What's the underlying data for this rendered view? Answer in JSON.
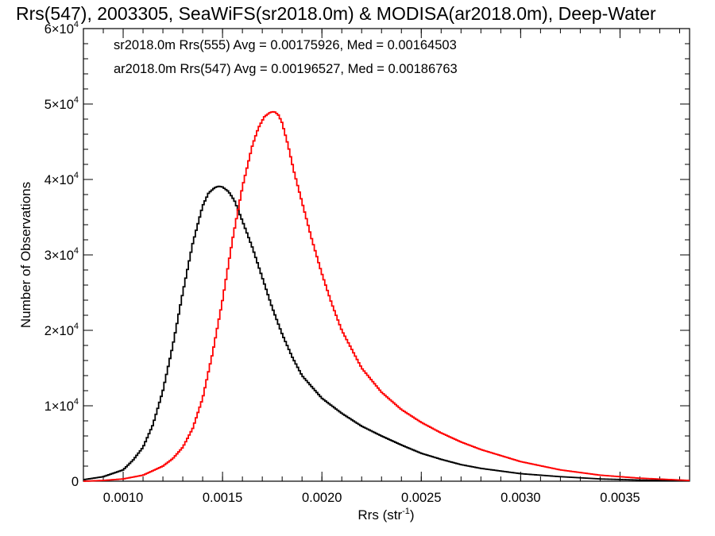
{
  "chart_data": {
    "type": "line",
    "title": "Rrs(547), 2003305, SeaWiFS(sr2018.0m) & MODISA(ar2018.0m), Deep-Water",
    "xlabel_main": "Rrs (str",
    "xlabel_sup": "-1",
    "xlabel_close": ")",
    "ylabel": "Number of Observations",
    "xlim": [
      0.0008,
      0.00385
    ],
    "ylim": [
      0,
      60000
    ],
    "x_ticks": [
      {
        "value": 0.001,
        "label": "0.0010"
      },
      {
        "value": 0.0015,
        "label": "0.0015"
      },
      {
        "value": 0.002,
        "label": "0.0020"
      },
      {
        "value": 0.0025,
        "label": "0.0025"
      },
      {
        "value": 0.003,
        "label": "0.0030"
      },
      {
        "value": 0.0035,
        "label": "0.0035"
      }
    ],
    "y_ticks": [
      {
        "value": 0,
        "label": "0",
        "mant": "",
        "exp": ""
      },
      {
        "value": 10000,
        "label": "",
        "mant": "1×10",
        "exp": "4"
      },
      {
        "value": 20000,
        "label": "",
        "mant": "2×10",
        "exp": "4"
      },
      {
        "value": 30000,
        "label": "",
        "mant": "3×10",
        "exp": "4"
      },
      {
        "value": 40000,
        "label": "",
        "mant": "4×10",
        "exp": "4"
      },
      {
        "value": 50000,
        "label": "",
        "mant": "5×10",
        "exp": "4"
      },
      {
        "value": 60000,
        "label": "",
        "mant": "6×10",
        "exp": "4"
      }
    ],
    "grid": false,
    "legend_position": "top-left",
    "series": [
      {
        "name": "sr2018.0m Rrs(555) Avg = 0.00175926, Med = 0.00164503",
        "color": "#000000",
        "x": [
          0.0008,
          0.0009,
          0.001,
          0.00105,
          0.0011,
          0.00115,
          0.0012,
          0.00125,
          0.0013,
          0.00135,
          0.0014,
          0.00143,
          0.00146,
          0.00148,
          0.0015,
          0.00153,
          0.00156,
          0.0016,
          0.00165,
          0.0017,
          0.00175,
          0.0018,
          0.00185,
          0.0019,
          0.002,
          0.0021,
          0.0022,
          0.0023,
          0.0024,
          0.0025,
          0.0026,
          0.0027,
          0.0028,
          0.003,
          0.0032,
          0.0034,
          0.0036,
          0.00385
        ],
        "y": [
          200,
          600,
          1500,
          2800,
          4500,
          7500,
          12000,
          18000,
          25000,
          31500,
          36500,
          38200,
          38900,
          39100,
          39000,
          38400,
          37200,
          34500,
          31000,
          27000,
          23000,
          19500,
          16500,
          14000,
          11000,
          9000,
          7300,
          6000,
          4800,
          3700,
          2900,
          2200,
          1700,
          1000,
          600,
          300,
          150,
          50
        ]
      },
      {
        "name": "ar2018.0m Rrs(547) Avg = 0.00196527, Med = 0.00186763",
        "color": "#ff0000",
        "x": [
          0.0008,
          0.0009,
          0.001,
          0.0011,
          0.0012,
          0.00125,
          0.0013,
          0.00135,
          0.0014,
          0.00145,
          0.0015,
          0.00155,
          0.0016,
          0.00165,
          0.00168,
          0.00171,
          0.00174,
          0.00176,
          0.00178,
          0.0018,
          0.00183,
          0.00186,
          0.0019,
          0.00195,
          0.002,
          0.00205,
          0.0021,
          0.0022,
          0.0023,
          0.0024,
          0.0025,
          0.0026,
          0.0027,
          0.0028,
          0.003,
          0.0032,
          0.0034,
          0.0036,
          0.00385
        ],
        "y": [
          0,
          100,
          300,
          800,
          2000,
          3000,
          4500,
          7000,
          11000,
          17000,
          24000,
          32000,
          39000,
          44500,
          46800,
          48300,
          48900,
          49000,
          48600,
          47500,
          44500,
          41000,
          37000,
          32000,
          27500,
          23500,
          20000,
          15000,
          11800,
          9500,
          7800,
          6400,
          5200,
          4200,
          2600,
          1500,
          800,
          400,
          100
        ]
      }
    ]
  }
}
